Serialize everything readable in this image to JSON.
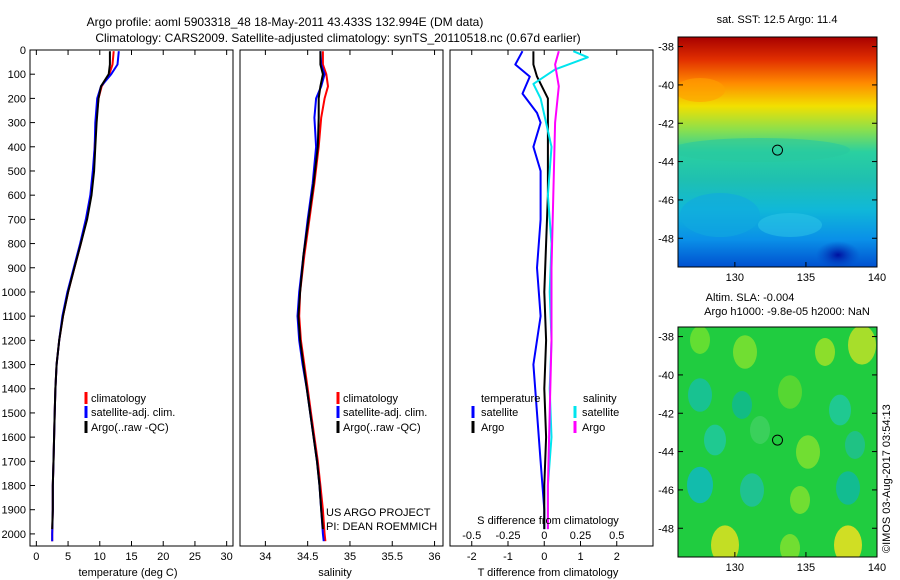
{
  "title_line1": "Argo profile: aoml 5903318_48 18-May-2011 43.433S 132.994E (DM data)",
  "title_line2": "Climatology: CARS2009. Satellite-adjusted climatology: synTS_20110518.nc (0.67d earlier)",
  "footer_vertical": "©IMOS 03-Aug-2017 03:54:13",
  "colors": {
    "climatology": "#ff0000",
    "satellite": "#0000ff",
    "argo": "#000000",
    "sal_satellite": "#00e5ee",
    "sal_argo": "#ff00ff"
  },
  "chart_data": [
    {
      "type": "line",
      "name": "temperature",
      "xlabel": "temperature (deg C)",
      "xlim": [
        -1,
        31
      ],
      "ylim": [
        2050,
        0
      ],
      "x_ticks": [
        0,
        5,
        10,
        15,
        20,
        25,
        30
      ],
      "y_ticks": [
        0,
        100,
        200,
        300,
        400,
        500,
        600,
        700,
        800,
        900,
        1000,
        1100,
        1200,
        1300,
        1400,
        1500,
        1600,
        1700,
        1800,
        1900,
        2000
      ],
      "legend": [
        "climatology",
        "satellite-adj. clim.",
        "Argo(..raw -QC)"
      ],
      "series": [
        {
          "name": "climatology",
          "color": "#ff0000",
          "points": [
            [
              12.2,
              5
            ],
            [
              12.0,
              60
            ],
            [
              11.5,
              100
            ],
            [
              10.3,
              150
            ],
            [
              9.8,
              200
            ],
            [
              9.4,
              300
            ],
            [
              9.2,
              400
            ],
            [
              9.0,
              500
            ],
            [
              8.6,
              600
            ],
            [
              7.9,
              700
            ],
            [
              7.0,
              800
            ],
            [
              6.0,
              900
            ],
            [
              5.0,
              1000
            ],
            [
              4.2,
              1100
            ],
            [
              3.6,
              1200
            ],
            [
              3.2,
              1300
            ],
            [
              3.0,
              1400
            ],
            [
              2.9,
              1500
            ],
            [
              2.8,
              1600
            ],
            [
              2.7,
              1700
            ],
            [
              2.6,
              1800
            ],
            [
              2.6,
              1900
            ],
            [
              2.5,
              2000
            ],
            [
              2.5,
              2030
            ]
          ]
        },
        {
          "name": "satellite-adj. clim.",
          "color": "#0000ff",
          "points": [
            [
              13.0,
              5
            ],
            [
              12.8,
              60
            ],
            [
              11.8,
              100
            ],
            [
              10.2,
              150
            ],
            [
              9.6,
              200
            ],
            [
              9.3,
              300
            ],
            [
              9.2,
              400
            ],
            [
              8.9,
              500
            ],
            [
              8.5,
              600
            ],
            [
              7.8,
              700
            ],
            [
              6.9,
              800
            ],
            [
              5.9,
              900
            ],
            [
              4.9,
              1000
            ],
            [
              4.1,
              1100
            ],
            [
              3.6,
              1200
            ],
            [
              3.2,
              1300
            ],
            [
              3.0,
              1400
            ],
            [
              2.9,
              1500
            ],
            [
              2.8,
              1600
            ],
            [
              2.7,
              1700
            ],
            [
              2.6,
              1800
            ],
            [
              2.6,
              1900
            ],
            [
              2.5,
              2000
            ],
            [
              2.5,
              2030
            ]
          ]
        },
        {
          "name": "Argo(..raw -QC)",
          "color": "#000000",
          "points": [
            [
              11.6,
              5
            ],
            [
              11.6,
              60
            ],
            [
              11.4,
              100
            ],
            [
              10.2,
              150
            ],
            [
              9.8,
              200
            ],
            [
              9.5,
              300
            ],
            [
              9.3,
              400
            ],
            [
              9.1,
              500
            ],
            [
              8.7,
              600
            ],
            [
              8.0,
              700
            ],
            [
              7.0,
              800
            ],
            [
              6.0,
              900
            ],
            [
              5.0,
              1000
            ],
            [
              4.2,
              1100
            ],
            [
              3.6,
              1200
            ],
            [
              3.2,
              1300
            ],
            [
              3.0,
              1400
            ],
            [
              2.9,
              1500
            ],
            [
              2.8,
              1600
            ],
            [
              2.7,
              1700
            ],
            [
              2.6,
              1800
            ],
            [
              2.6,
              1900
            ],
            [
              2.5,
              1980
            ]
          ]
        }
      ]
    },
    {
      "type": "line",
      "name": "salinity",
      "xlabel": "salinity",
      "xlim": [
        33.7,
        36.1
      ],
      "ylim": [
        2050,
        0
      ],
      "x_ticks": [
        34,
        34.5,
        35,
        35.5,
        36
      ],
      "legend": [
        "climatology",
        "satellite-adj. clim.",
        "Argo(..raw -QC)"
      ],
      "annotation": [
        "US ARGO PROJECT",
        "PI: DEAN ROEMMICH"
      ],
      "series": [
        {
          "name": "climatology",
          "color": "#ff0000",
          "points": [
            [
              34.68,
              5
            ],
            [
              34.68,
              60
            ],
            [
              34.72,
              100
            ],
            [
              34.74,
              150
            ],
            [
              34.7,
              200
            ],
            [
              34.66,
              280
            ],
            [
              34.63,
              400
            ],
            [
              34.58,
              550
            ],
            [
              34.52,
              700
            ],
            [
              34.46,
              850
            ],
            [
              34.41,
              1000
            ],
            [
              34.4,
              1100
            ],
            [
              34.42,
              1200
            ],
            [
              34.46,
              1300
            ],
            [
              34.5,
              1400
            ],
            [
              34.54,
              1500
            ],
            [
              34.58,
              1600
            ],
            [
              34.62,
              1700
            ],
            [
              34.65,
              1800
            ],
            [
              34.68,
              1900
            ],
            [
              34.7,
              2000
            ],
            [
              34.71,
              2030
            ]
          ]
        },
        {
          "name": "satellite-adj. clim.",
          "color": "#0000ff",
          "points": [
            [
              34.65,
              5
            ],
            [
              34.66,
              60
            ],
            [
              34.7,
              100
            ],
            [
              34.66,
              150
            ],
            [
              34.6,
              200
            ],
            [
              34.58,
              280
            ],
            [
              34.6,
              400
            ],
            [
              34.56,
              550
            ],
            [
              34.5,
              700
            ],
            [
              34.45,
              850
            ],
            [
              34.4,
              1000
            ],
            [
              34.38,
              1100
            ],
            [
              34.4,
              1200
            ],
            [
              34.44,
              1300
            ],
            [
              34.49,
              1400
            ],
            [
              34.53,
              1500
            ],
            [
              34.57,
              1600
            ],
            [
              34.61,
              1700
            ],
            [
              34.64,
              1800
            ],
            [
              34.66,
              1900
            ],
            [
              34.68,
              2000
            ],
            [
              34.69,
              2030
            ]
          ]
        },
        {
          "name": "Argo(..raw -QC)",
          "color": "#000000",
          "points": [
            [
              34.65,
              5
            ],
            [
              34.65,
              60
            ],
            [
              34.68,
              100
            ],
            [
              34.65,
              150
            ],
            [
              34.63,
              200
            ],
            [
              34.63,
              280
            ],
            [
              34.62,
              400
            ],
            [
              34.57,
              550
            ],
            [
              34.51,
              700
            ],
            [
              34.45,
              850
            ],
            [
              34.41,
              1000
            ],
            [
              34.39,
              1100
            ],
            [
              34.41,
              1200
            ],
            [
              34.45,
              1300
            ],
            [
              34.49,
              1400
            ],
            [
              34.53,
              1500
            ],
            [
              34.57,
              1600
            ],
            [
              34.61,
              1700
            ],
            [
              34.64,
              1800
            ],
            [
              34.66,
              1900
            ],
            [
              34.68,
              1980
            ]
          ]
        }
      ]
    },
    {
      "type": "line",
      "name": "difference",
      "xlabel": "T difference from climatology",
      "xlabel_top": "S difference from climatology",
      "xlim": [
        -2.6,
        3.0
      ],
      "ylim": [
        2050,
        0
      ],
      "x_ticks": [
        -2,
        -1,
        0,
        1,
        2
      ],
      "top_ticks": [
        -0.5,
        -0.25,
        0,
        0.25,
        0.5
      ],
      "top_scale": 4,
      "legend_temperature_title": "temperature",
      "legend_salinity_title": "salinity",
      "legend_temperature": [
        "satellite",
        "Argo"
      ],
      "legend_salinity": [
        "satellite",
        "Argo"
      ],
      "series": [
        {
          "name": "T satellite",
          "color": "#0000ff",
          "points": [
            [
              -0.6,
              5
            ],
            [
              -0.8,
              60
            ],
            [
              -0.4,
              110
            ],
            [
              -0.6,
              180
            ],
            [
              -0.2,
              260
            ],
            [
              -0.1,
              300
            ],
            [
              -0.3,
              400
            ],
            [
              -0.1,
              500
            ],
            [
              -0.1,
              700
            ],
            [
              -0.2,
              900
            ],
            [
              -0.1,
              1100
            ],
            [
              -0.3,
              1300
            ],
            [
              -0.2,
              1500
            ],
            [
              -0.1,
              1700
            ],
            [
              0.0,
              1900
            ],
            [
              0.0,
              1980
            ]
          ]
        },
        {
          "name": "T Argo",
          "color": "#000000",
          "points": [
            [
              -0.3,
              5
            ],
            [
              -0.3,
              60
            ],
            [
              -0.2,
              110
            ],
            [
              0.1,
              200
            ],
            [
              0.1,
              400
            ],
            [
              0.1,
              600
            ],
            [
              0.05,
              800
            ],
            [
              0.0,
              1000
            ],
            [
              0.05,
              1200
            ],
            [
              0.0,
              1400
            ],
            [
              0.05,
              1600
            ],
            [
              0.0,
              1800
            ],
            [
              0.0,
              1980
            ]
          ]
        },
        {
          "name": "S satellite",
          "color": "#00e5ee",
          "points": [
            [
              0.8,
              5
            ],
            [
              1.2,
              30
            ],
            [
              0.3,
              80
            ],
            [
              -0.3,
              140
            ],
            [
              -0.1,
              200
            ],
            [
              0.2,
              400
            ],
            [
              0.1,
              600
            ],
            [
              0.2,
              800
            ],
            [
              0.15,
              1000
            ],
            [
              0.2,
              1200
            ],
            [
              0.15,
              1400
            ],
            [
              0.2,
              1600
            ],
            [
              0.1,
              1800
            ],
            [
              0.1,
              1980
            ]
          ]
        },
        {
          "name": "S Argo",
          "color": "#ff00ff",
          "points": [
            [
              0.4,
              5
            ],
            [
              0.3,
              60
            ],
            [
              0.4,
              150
            ],
            [
              0.3,
              300
            ],
            [
              0.25,
              600
            ],
            [
              0.2,
              900
            ],
            [
              0.2,
              1200
            ],
            [
              0.15,
              1500
            ],
            [
              0.1,
              1800
            ],
            [
              0.1,
              1980
            ]
          ]
        }
      ]
    },
    {
      "type": "heatmap",
      "name": "sst_map",
      "title": "sat. SST: 12.5  Argo: 11.4",
      "x_ticks": [
        130,
        135,
        140
      ],
      "y_ticks": [
        -38,
        -40,
        -42,
        -44,
        -46,
        -48
      ],
      "xlim": [
        126,
        140
      ],
      "ylim": [
        -49.5,
        -37.5
      ],
      "marker": [
        133.0,
        -43.4
      ]
    },
    {
      "type": "heatmap",
      "name": "sla_map",
      "title_line1": "Altim. SLA: -0.004",
      "title_line2": "Argo h1000: -9.8e-05 h2000: NaN",
      "x_ticks": [
        130,
        135,
        140
      ],
      "y_ticks": [
        -38,
        -40,
        -42,
        -44,
        -46,
        -48
      ],
      "xlim": [
        126,
        140
      ],
      "ylim": [
        -49.5,
        -37.5
      ],
      "marker": [
        133.0,
        -43.4
      ]
    }
  ]
}
